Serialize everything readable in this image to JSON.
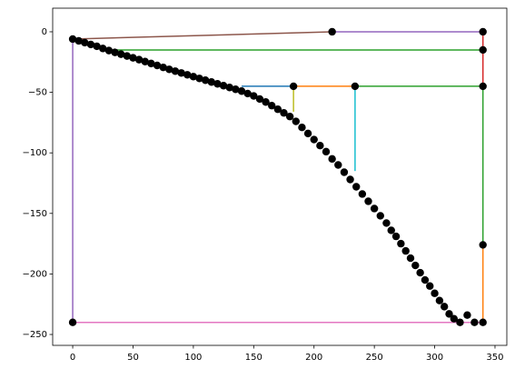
{
  "chart_data": {
    "type": "line",
    "xlim": [
      -16.6,
      359.8
    ],
    "ylim": [
      -259,
      19.5
    ],
    "xticks": [
      0,
      50,
      100,
      150,
      200,
      250,
      300,
      350
    ],
    "yticks": [
      0,
      {
        "value": -50,
        "label": "−50"
      },
      {
        "value": -100,
        "label": "−100"
      },
      {
        "value": -150,
        "label": "−150"
      },
      {
        "value": -200,
        "label": "−200"
      },
      {
        "value": -250,
        "label": "−250"
      }
    ],
    "series": [
      {
        "color": "#8c564b",
        "x": [
          0,
          215
        ],
        "values": [
          -6,
          0
        ]
      },
      {
        "color": "#9467bd",
        "x": [
          215,
          340
        ],
        "values": [
          0,
          0
        ]
      },
      {
        "color": "#2ca02c",
        "x": [
          35,
          340
        ],
        "values": [
          -15,
          -15
        ]
      },
      {
        "color": "#d62728",
        "x": [
          340,
          340
        ],
        "values": [
          0,
          -15
        ]
      },
      {
        "color": "#d62728",
        "x": [
          340,
          340
        ],
        "values": [
          -15,
          -45
        ]
      },
      {
        "color": "#1f77b4",
        "x": [
          140,
          183
        ],
        "values": [
          -45,
          -45
        ]
      },
      {
        "color": "#bcbd22",
        "x": [
          183,
          183
        ],
        "values": [
          -45,
          -66
        ]
      },
      {
        "color": "#ff7f0e",
        "x": [
          183,
          234
        ],
        "values": [
          -45,
          -45
        ]
      },
      {
        "color": "#17becf",
        "x": [
          234,
          234
        ],
        "values": [
          -45,
          -115
        ]
      },
      {
        "color": "#2ca02c",
        "x": [
          234,
          340
        ],
        "values": [
          -45,
          -45
        ]
      },
      {
        "color": "#2ca02c",
        "x": [
          340,
          340
        ],
        "values": [
          -45,
          -176
        ]
      },
      {
        "color": "#ff7f0e",
        "x": [
          340,
          340
        ],
        "values": [
          -176,
          -240
        ]
      },
      {
        "color": "#e377c2",
        "x": [
          0,
          340
        ],
        "values": [
          -240,
          -240
        ]
      },
      {
        "color": "#9467bd",
        "x": [
          0,
          0
        ],
        "values": [
          -6,
          -240
        ]
      },
      {
        "color": "#000000",
        "line": false,
        "marker": true,
        "x": [
          0,
          5,
          10,
          15,
          20,
          25,
          30,
          35,
          40,
          45,
          50,
          55,
          60,
          65,
          70,
          75,
          80,
          85,
          90,
          95,
          100,
          105,
          110,
          115,
          120,
          125,
          130,
          135,
          140,
          145,
          150,
          155,
          160,
          165,
          170,
          175,
          180,
          185,
          190,
          195,
          200,
          205,
          210,
          215,
          220,
          225,
          230,
          235,
          240,
          245,
          250,
          255,
          260,
          264,
          268,
          272,
          276,
          280,
          284,
          288,
          292,
          296,
          300,
          304,
          308,
          312,
          316,
          321,
          327,
          333,
          215,
          340,
          340,
          183,
          234,
          340,
          340,
          340,
          0
        ],
        "values": [
          -6,
          -7.5,
          -9,
          -10.5,
          -12,
          -13.8,
          -15.5,
          -17,
          -18.5,
          -20,
          -21.5,
          -23,
          -24.6,
          -26.2,
          -27.8,
          -29.4,
          -31,
          -32.5,
          -34,
          -35.5,
          -37,
          -38.5,
          -40,
          -41.5,
          -43,
          -44.5,
          -46,
          -47.5,
          -49,
          -51,
          -53,
          -55.5,
          -58,
          -61,
          -64,
          -67,
          -70,
          -74,
          -79,
          -84,
          -89,
          -94,
          -99,
          -105,
          -110,
          -116,
          -122,
          -128,
          -134,
          -140,
          -146,
          -152,
          -158,
          -164,
          -169,
          -175,
          -181,
          -187,
          -193,
          -199,
          -205,
          -210,
          -216,
          -222,
          -227,
          -233,
          -237,
          -240,
          -234,
          -240,
          0,
          0,
          -15,
          -45,
          -45,
          -45,
          -176,
          -240,
          -240
        ]
      }
    ]
  }
}
